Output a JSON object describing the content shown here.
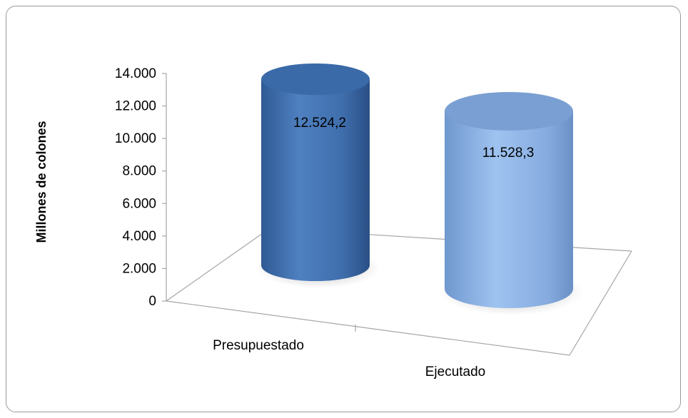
{
  "chart_data": {
    "type": "bar",
    "style": "3d-cylinder",
    "categories": [
      "Presupuestado",
      "Ejecutado"
    ],
    "values": [
      12524.2,
      11528.3
    ],
    "data_labels": [
      "12.524,2",
      "11.528,3"
    ],
    "ylabel": "Millones de colones",
    "xlabel": "",
    "ylim": [
      0,
      14000
    ],
    "yticks": [
      0,
      2000,
      4000,
      6000,
      8000,
      10000,
      12000,
      14000
    ],
    "ytick_labels": [
      "0",
      "2.000",
      "4.000",
      "6.000",
      "8.000",
      "10.000",
      "12.000",
      "14.000"
    ],
    "grid": false,
    "legend": "none",
    "colors": [
      "#4a78b5",
      "#8fb4e3"
    ]
  }
}
